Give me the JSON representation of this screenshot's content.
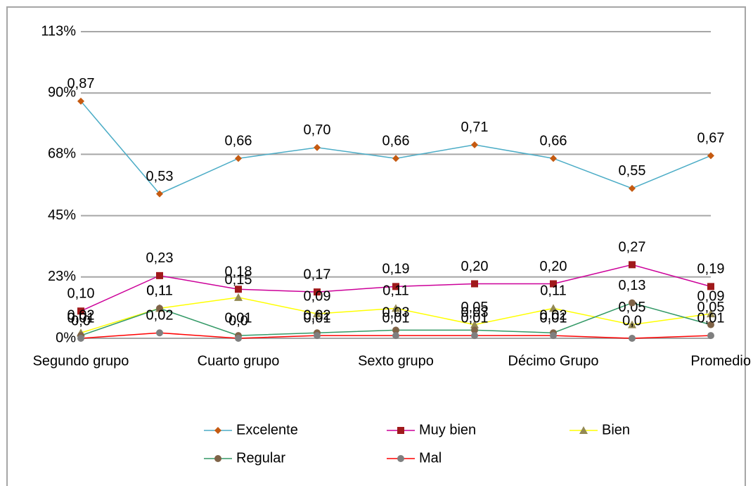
{
  "chart_data": {
    "type": "line",
    "categories": [
      "Segundo grupo",
      null,
      "Cuarto grupo",
      null,
      "Sexto grupo",
      null,
      "Décimo Grupo",
      null,
      "Promedio"
    ],
    "ylim": [
      0,
      112.5
    ],
    "yticks": [
      {
        "value": 0,
        "label": "0%"
      },
      {
        "value": 22.5,
        "label": "23%"
      },
      {
        "value": 45,
        "label": "45%"
      },
      {
        "value": 67.5,
        "label": "68%"
      },
      {
        "value": 90,
        "label": "90%"
      },
      {
        "value": 112.5,
        "label": "113%"
      }
    ],
    "grid": true,
    "legend": "bottom",
    "series": [
      {
        "name": "Excelente",
        "color": "#4bacc6",
        "marker_color": "#c55a11",
        "marker": "diamond",
        "values": [
          87,
          53,
          66,
          70,
          66,
          71,
          66,
          55,
          67
        ],
        "value_labels": [
          "0,87",
          "0,53",
          "0,66",
          "0,70",
          "0,66",
          "0,71",
          "0,66",
          "0,55",
          "0,67"
        ]
      },
      {
        "name": "Muy bien",
        "color": "#cc0099",
        "marker_color": "#a0191b",
        "marker": "square",
        "values": [
          10,
          23,
          18,
          17,
          19,
          20,
          20,
          27,
          19
        ],
        "value_labels": [
          "0,10",
          "0,23",
          "0,18",
          "0,17",
          "0,19",
          "0,20",
          "0,20",
          "0,27",
          "0,19"
        ]
      },
      {
        "name": "Bien",
        "color": "#ffff00",
        "marker_color": "#938953",
        "marker": "triangle",
        "values": [
          2,
          11,
          15,
          9,
          11,
          5,
          11,
          5,
          9
        ],
        "value_labels": [
          "0,02",
          "0,11",
          "0,15",
          "0,09",
          "0,11",
          "0,05",
          "0,11",
          "0,05",
          "0,09"
        ]
      },
      {
        "name": "Regular",
        "color": "#339966",
        "marker_color": "#7f6347",
        "marker": "circle",
        "values": [
          1,
          11,
          1,
          2,
          3,
          3,
          2,
          13,
          5
        ],
        "value_labels": [
          "0,01",
          "0,11",
          "0,01",
          "0,02",
          "0,03",
          "0,03",
          "0,02",
          "0,13",
          "0,05"
        ]
      },
      {
        "name": "Mal",
        "color": "#ff0000",
        "marker_color": "#7f7f7f",
        "marker": "circle",
        "values": [
          0,
          2,
          0,
          1,
          1,
          1,
          1,
          0,
          1
        ],
        "value_labels": [
          "0,0",
          "0,02",
          "0,0",
          "0,01",
          "0,01",
          "0,01",
          "0,01",
          "0,0",
          "0,01"
        ]
      }
    ]
  }
}
